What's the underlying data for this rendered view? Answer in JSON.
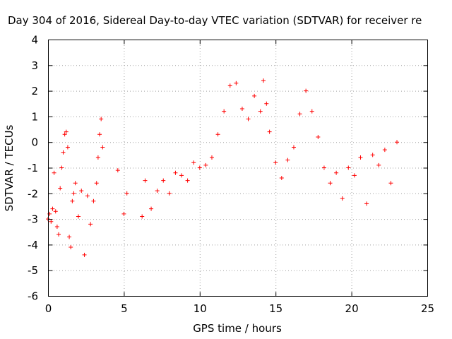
{
  "chart_data": {
    "type": "scatter",
    "title": "Day 304 of 2016, Sidereal Day-to-day VTEC variation (SDTVAR) for receiver re",
    "xlabel": "GPS time / hours",
    "ylabel": "SDTVAR / TECUs",
    "xlim": [
      0,
      25
    ],
    "ylim": [
      -6,
      4
    ],
    "xticks": [
      "0",
      "5",
      "10",
      "15",
      "20",
      "25"
    ],
    "yticks": [
      "-6",
      "-5",
      "-4",
      "-3",
      "-2",
      "-1",
      "0",
      "1",
      "2",
      "3",
      "4"
    ],
    "grid": true,
    "marker": "+",
    "series": [
      {
        "name": "SDTVAR",
        "color": "#ff0000",
        "x": [
          0.0,
          0.1,
          0.2,
          0.3,
          0.4,
          0.5,
          0.6,
          0.7,
          0.8,
          0.9,
          1.0,
          1.1,
          1.2,
          1.3,
          1.4,
          1.5,
          1.6,
          1.7,
          1.8,
          2.0,
          2.2,
          2.4,
          2.6,
          2.8,
          3.0,
          3.2,
          3.3,
          3.4,
          3.5,
          3.6,
          4.6,
          5.0,
          5.2,
          6.2,
          6.4,
          6.8,
          7.2,
          7.6,
          8.0,
          8.4,
          8.8,
          9.2,
          9.6,
          10.0,
          10.4,
          10.8,
          11.2,
          11.6,
          12.0,
          12.4,
          12.8,
          13.2,
          13.6,
          14.0,
          14.2,
          14.4,
          14.6,
          15.0,
          15.4,
          15.8,
          16.2,
          16.6,
          17.0,
          17.4,
          17.8,
          18.2,
          18.6,
          19.0,
          19.4,
          19.8,
          20.2,
          20.6,
          21.0,
          21.4,
          21.8,
          22.2,
          22.6,
          23.0
        ],
        "y": [
          -3.0,
          -2.8,
          -3.1,
          -2.6,
          -1.2,
          -2.7,
          -3.3,
          -3.6,
          -1.8,
          -1.0,
          -0.4,
          0.3,
          0.4,
          -0.2,
          -3.7,
          -4.1,
          -2.3,
          -2.0,
          -1.6,
          -2.9,
          -1.9,
          -4.4,
          -2.1,
          -3.2,
          -2.3,
          -1.6,
          -0.6,
          0.3,
          0.9,
          -0.2,
          -1.1,
          -2.8,
          -2.0,
          -2.9,
          -1.5,
          -2.6,
          -1.9,
          -1.5,
          -2.0,
          -1.2,
          -1.3,
          -1.5,
          -0.8,
          -1.0,
          -0.9,
          -0.6,
          0.3,
          1.2,
          2.2,
          2.3,
          1.3,
          0.9,
          1.8,
          1.2,
          2.4,
          1.5,
          0.4,
          -0.8,
          -1.4,
          -0.7,
          -0.2,
          1.1,
          2.0,
          1.2,
          0.2,
          -1.0,
          -1.6,
          -1.2,
          -2.2,
          -1.0,
          -1.3,
          -0.6,
          -2.4,
          -0.5,
          -0.9,
          -0.3,
          -1.6,
          0.0
        ]
      }
    ]
  }
}
